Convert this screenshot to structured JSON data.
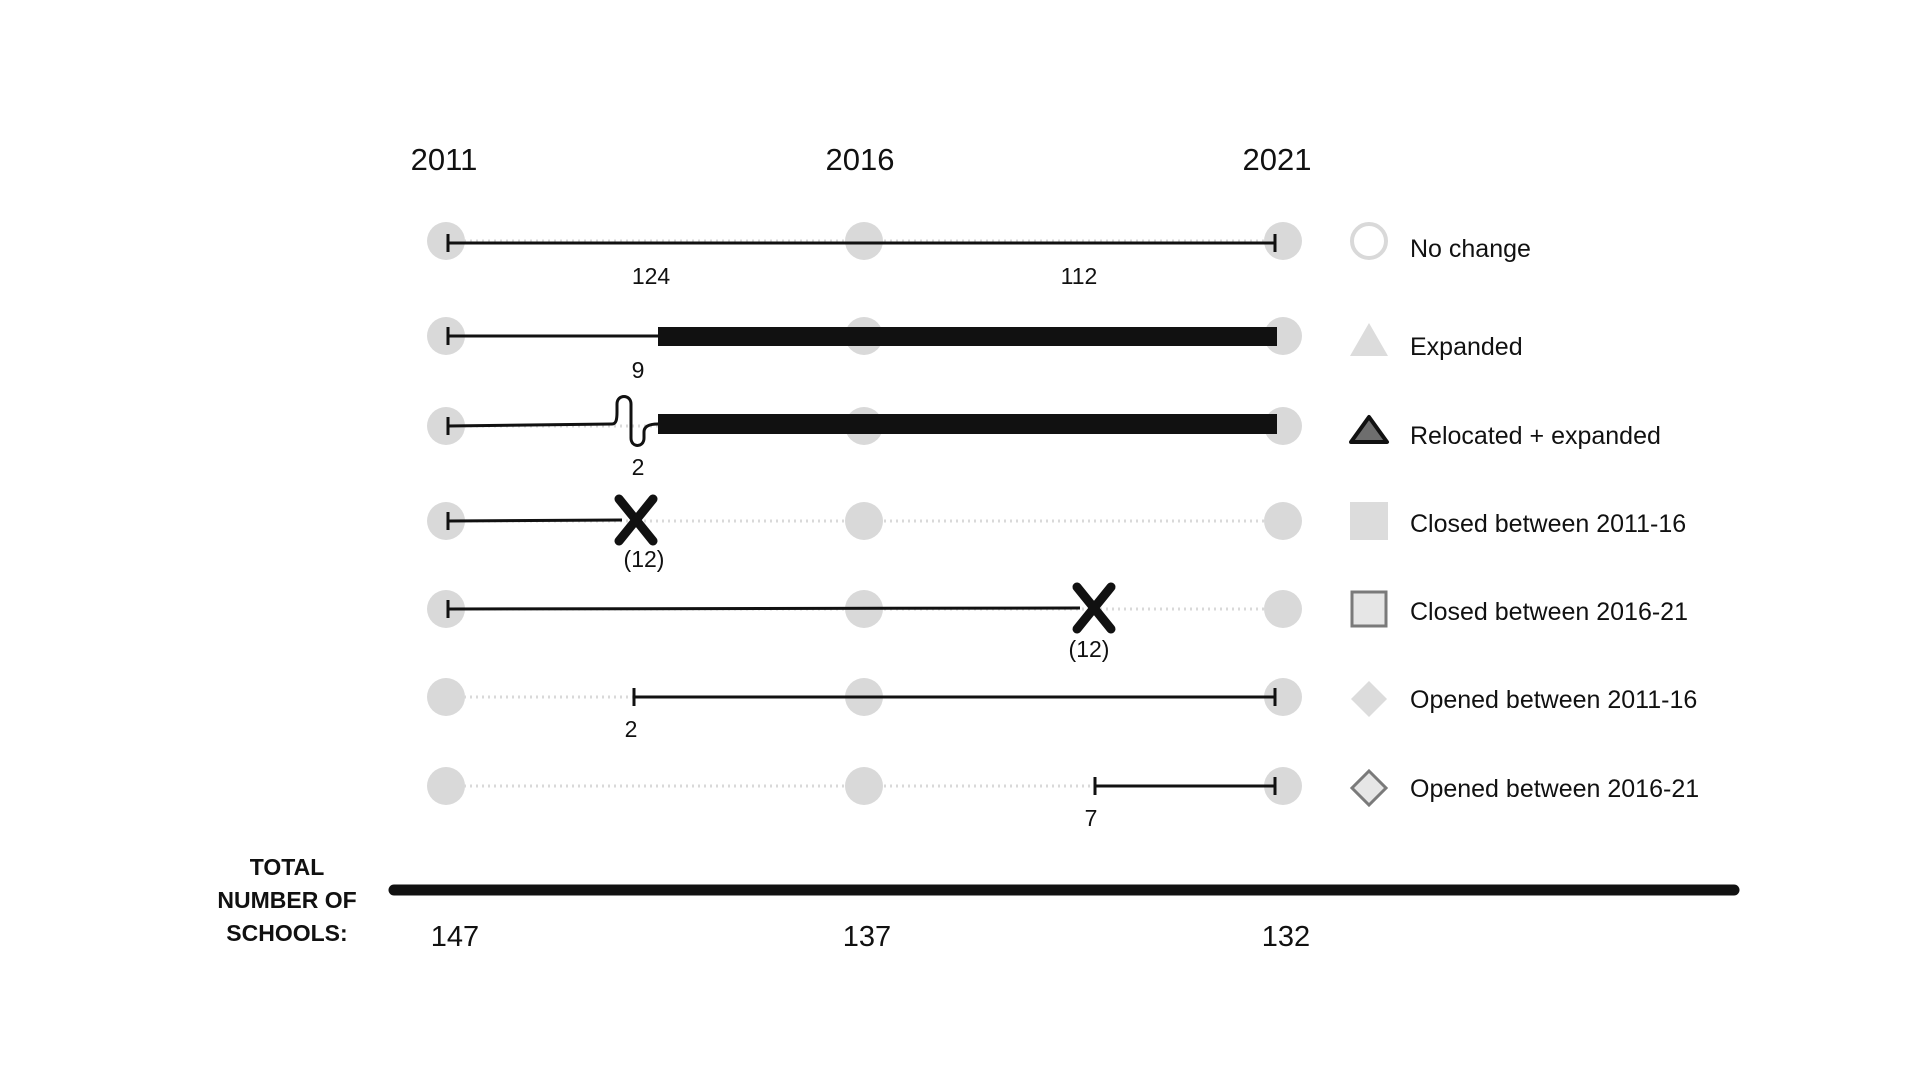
{
  "years": [
    "2011",
    "2016",
    "2021"
  ],
  "rows": [
    {
      "id": "no-change",
      "counts": [
        "124",
        "112"
      ]
    },
    {
      "id": "expanded",
      "counts": [
        "9"
      ]
    },
    {
      "id": "relocated-expanded",
      "counts": [
        "2"
      ]
    },
    {
      "id": "closed-2011-16",
      "counts": [
        "(12)"
      ]
    },
    {
      "id": "closed-2016-21",
      "counts": [
        "(12)"
      ]
    },
    {
      "id": "opened-2011-16",
      "counts": [
        "2"
      ]
    },
    {
      "id": "opened-2016-21",
      "counts": [
        "7"
      ]
    }
  ],
  "legend": [
    {
      "label": "No change",
      "icon": "circle-outline-icon"
    },
    {
      "label": "Expanded",
      "icon": "triangle-filled-icon"
    },
    {
      "label": "Relocated + expanded",
      "icon": "triangle-dark-outlined-icon"
    },
    {
      "label": "Closed between 2011-16",
      "icon": "square-filled-icon"
    },
    {
      "label": "Closed between 2016-21",
      "icon": "square-outline-icon"
    },
    {
      "label": "Opened between 2011-16",
      "icon": "diamond-filled-icon"
    },
    {
      "label": "Opened between 2016-21",
      "icon": "diamond-outline-icon"
    }
  ],
  "total": {
    "label_lines": [
      "TOTAL",
      "NUMBER OF",
      "SCHOOLS:"
    ],
    "values": [
      "147",
      "137",
      "132"
    ]
  },
  "colors": {
    "line": "#111111",
    "node": "#d9d9d9",
    "icon_fill": "#dcdcdc",
    "icon_stroke": "#7a7a7a",
    "relocated_fill": "#6e6e6e"
  }
}
